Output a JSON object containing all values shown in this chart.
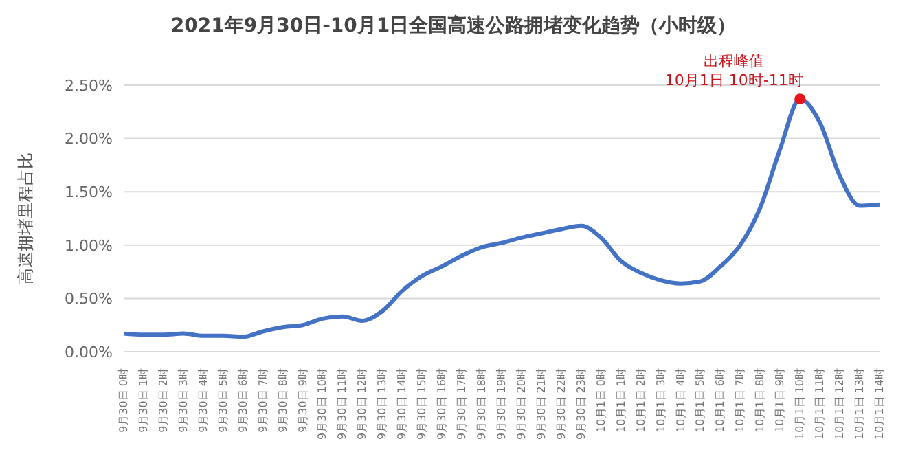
{
  "chart_data": {
    "type": "line",
    "title": "2021年9月30日-10月1日全国高速公路拥堵变化趋势（小时级）",
    "ylabel": "高速拥堵里程占比",
    "categories": [
      "9月30日 0时",
      "9月30日 1时",
      "9月30日 2时",
      "9月30日 3时",
      "9月30日 4时",
      "9月30日 5时",
      "9月30日 6时",
      "9月30日 7时",
      "9月30日 8时",
      "9月30日 9时",
      "9月30日 10时",
      "9月30日 11时",
      "9月30日 12时",
      "9月30日 13时",
      "9月30日 14时",
      "9月30日 15时",
      "9月30日 16时",
      "9月30日 17时",
      "9月30日 18时",
      "9月30日 19时",
      "9月30日 20时",
      "9月30日 21时",
      "9月30日 22时",
      "9月30日 23时",
      "10月1日 0时",
      "10月1日 1时",
      "10月1日 2时",
      "10月1日 3时",
      "10月1日 4时",
      "10月1日 5时",
      "10月1日 6时",
      "10月1日 7时",
      "10月1日 8时",
      "10月1日 9时",
      "10月1日 10时",
      "10月1日 11时",
      "10月1日 12时",
      "10月1日 13时",
      "10月1日 14时"
    ],
    "series": [
      {
        "color": "#4472c4",
        "values": [
          0.17,
          0.16,
          0.16,
          0.17,
          0.15,
          0.15,
          0.14,
          0.19,
          0.23,
          0.25,
          0.31,
          0.33,
          0.29,
          0.38,
          0.57,
          0.71,
          0.8,
          0.9,
          0.98,
          1.02,
          1.07,
          1.11,
          1.15,
          1.18,
          1.07,
          0.85,
          0.74,
          0.67,
          0.64,
          0.66,
          0.8,
          1.0,
          1.35,
          1.9,
          2.37,
          2.15,
          1.65,
          1.37,
          1.38
        ]
      }
    ],
    "ylim": [
      0,
      2.5
    ],
    "yticks": [
      {
        "value": 0,
        "label": "0.00%"
      },
      {
        "value": 0.5,
        "label": "0.50%"
      },
      {
        "value": 1,
        "label": "1.00%"
      },
      {
        "value": 1.5,
        "label": "1.50%"
      },
      {
        "value": 2,
        "label": "2.00%"
      },
      {
        "value": 2.5,
        "label": "2.50%"
      }
    ],
    "grid": "y",
    "marker": "none",
    "line_style": "solid",
    "annotations": [
      {
        "text": "出程峰值\n10月1日 10时-11时",
        "x": "10月1日 10时",
        "y": 2.37
      }
    ]
  }
}
